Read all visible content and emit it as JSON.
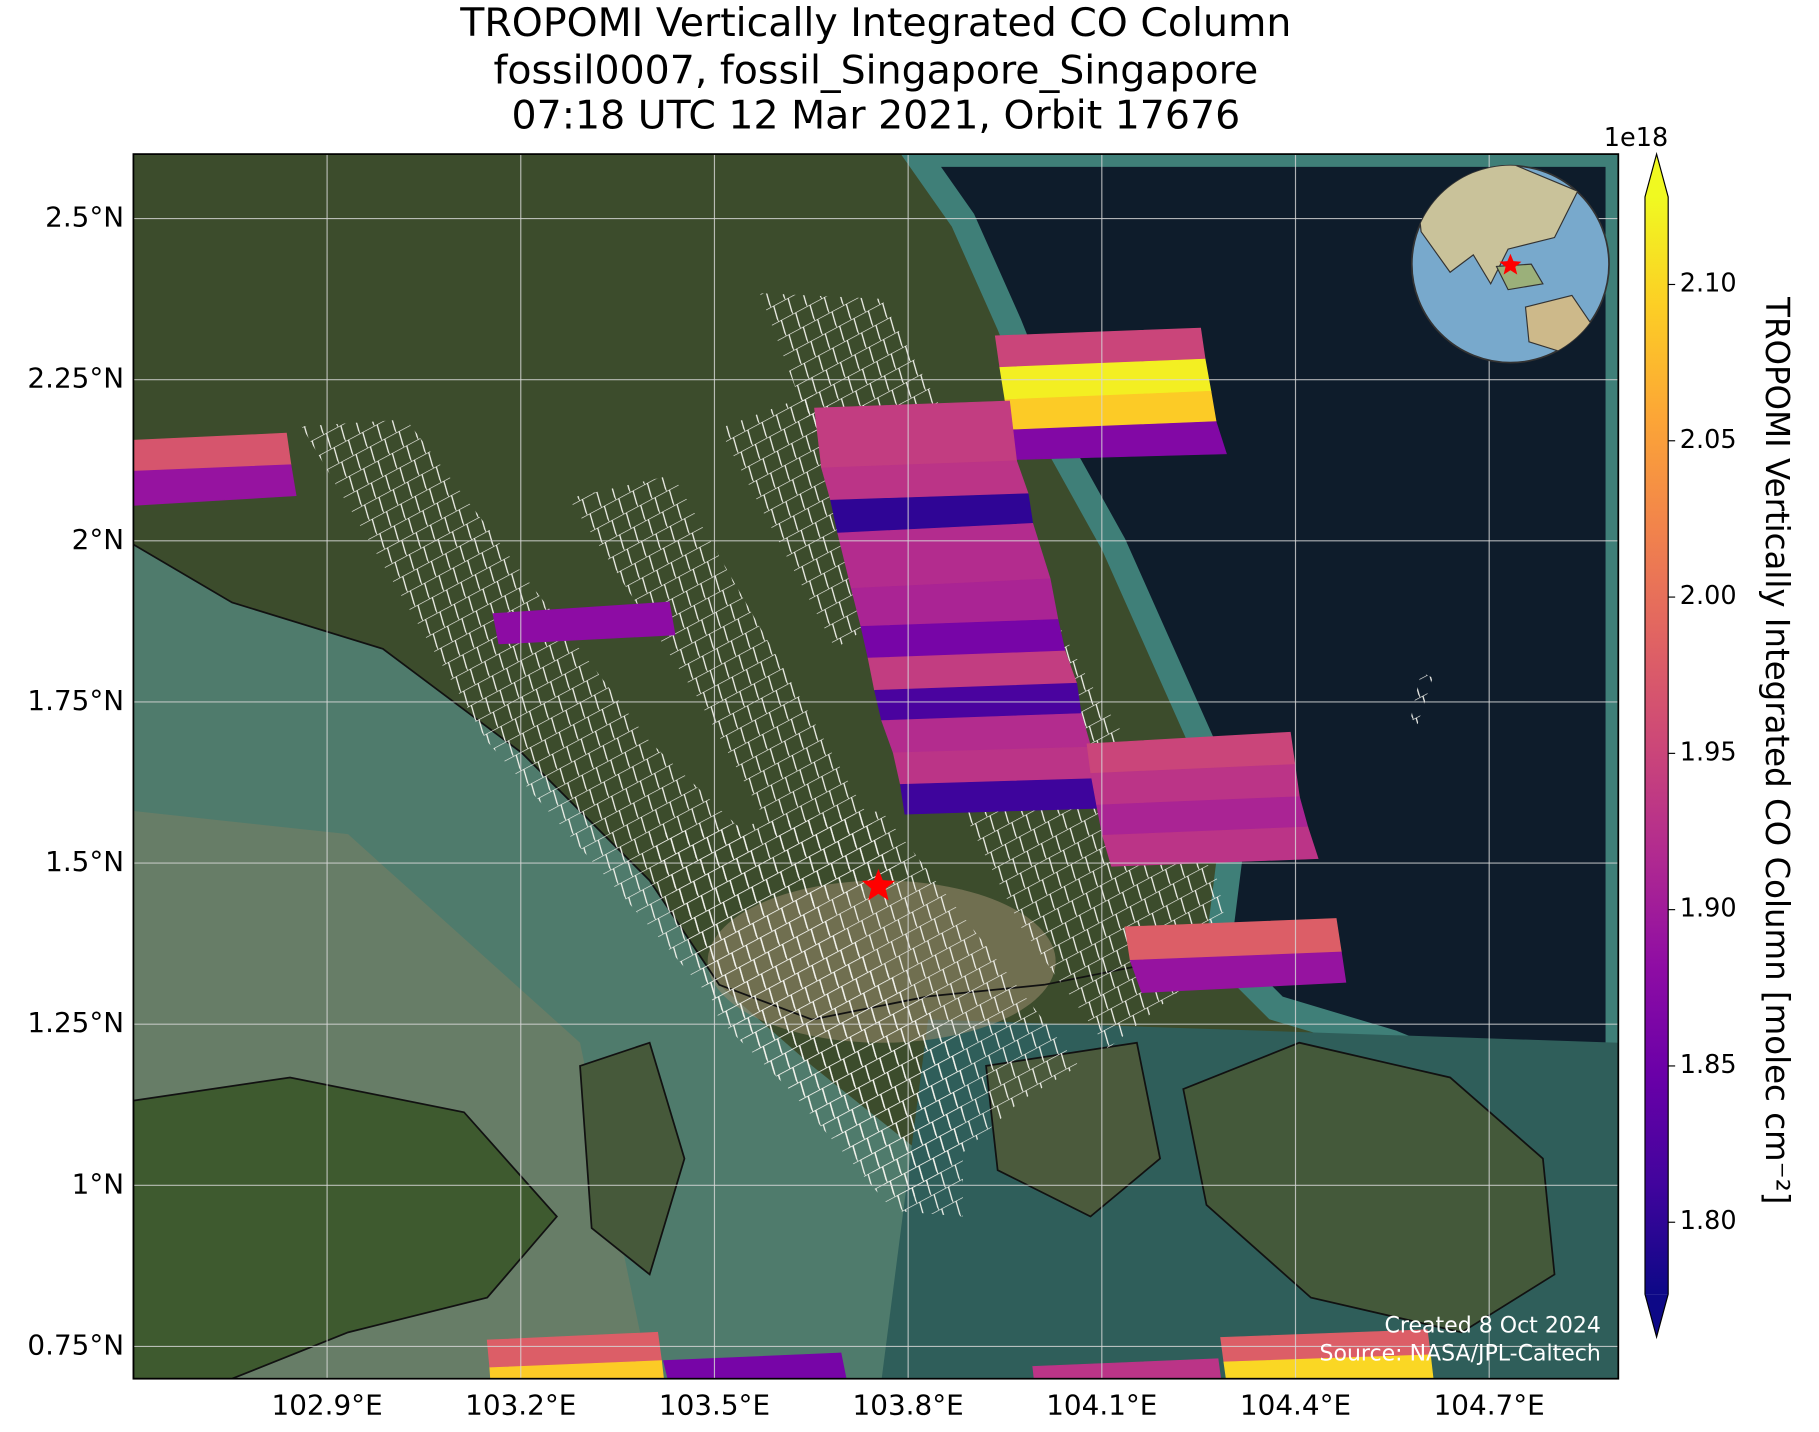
{
  "chart_data": {
    "type": "swath-map",
    "title": [
      "TROPOMI Vertically Integrated CO Column",
      "fossil0007, fossil_Singapore_Singapore",
      "07:18 UTC 12 Mar 2021, Orbit 17676"
    ],
    "xlim": [
      102.6,
      104.9
    ],
    "ylim": [
      0.7,
      2.6
    ],
    "xticks": [
      {
        "value": 102.9,
        "label": "102.9°E"
      },
      {
        "value": 103.2,
        "label": "103.2°E"
      },
      {
        "value": 103.5,
        "label": "103.5°E"
      },
      {
        "value": 103.8,
        "label": "103.8°E"
      },
      {
        "value": 104.1,
        "label": "104.1°E"
      },
      {
        "value": 104.4,
        "label": "104.4°E"
      },
      {
        "value": 104.7,
        "label": "104.7°E"
      }
    ],
    "yticks": [
      {
        "value": 0.75,
        "label": "0.75°N"
      },
      {
        "value": 1.0,
        "label": "1°N"
      },
      {
        "value": 1.25,
        "label": "1.25°N"
      },
      {
        "value": 1.5,
        "label": "1.5°N"
      },
      {
        "value": 1.75,
        "label": "1.75°N"
      },
      {
        "value": 2.0,
        "label": "2°N"
      },
      {
        "value": 2.25,
        "label": "2.25°N"
      },
      {
        "value": 2.5,
        "label": "2.5°N"
      }
    ],
    "grid": true,
    "colormap": "plasma",
    "clim": [
      1.777,
      2.128
    ],
    "colorbar_label": "TROPOMI Vertically Integrated CO Column [molec cm⁻²]",
    "colorbar_offset": "1e18",
    "colorbar_ticks": [
      {
        "value": 1.8,
        "label": "1.80"
      },
      {
        "value": 1.85,
        "label": "1.85"
      },
      {
        "value": 1.9,
        "label": "1.90"
      },
      {
        "value": 1.95,
        "label": "1.95"
      },
      {
        "value": 2.0,
        "label": "2.00"
      },
      {
        "value": 2.05,
        "label": "2.05"
      },
      {
        "value": 2.1,
        "label": "2.10"
      }
    ],
    "target": {
      "lon": 103.754,
      "lat": 1.464,
      "color": "#ff0000"
    },
    "swaths": [
      {
        "edges": [
          [
            [
              102.6,
              2.156
            ],
            [
              102.837,
              2.167
            ]
          ],
          [
            [
              102.6,
              2.108
            ],
            [
              102.844,
              2.118
            ]
          ],
          [
            [
              102.6,
              2.055
            ],
            [
              102.852,
              2.07
            ]
          ]
        ],
        "values": [
          1.97,
          1.89
        ]
      },
      {
        "edges": [
          [
            [
              103.935,
              2.318
            ],
            [
              104.253,
              2.33
            ]
          ],
          [
            [
              103.942,
              2.269
            ],
            [
              104.26,
              2.282
            ]
          ],
          [
            [
              103.95,
              2.219
            ],
            [
              104.269,
              2.232
            ]
          ],
          [
            [
              103.957,
              2.172
            ],
            [
              104.277,
              2.185
            ]
          ],
          [
            [
              103.964,
              2.126
            ],
            [
              104.293,
              2.135
            ]
          ]
        ],
        "values": [
          1.95,
          2.12,
          2.09,
          1.87
        ]
      },
      {
        "edges": [
          [
            [
              103.655,
              2.206
            ],
            [
              103.957,
              2.217
            ]
          ],
          [
            [
              103.666,
              2.113
            ],
            [
              103.968,
              2.124
            ]
          ],
          [
            [
              103.68,
              2.063
            ],
            [
              103.986,
              2.073
            ]
          ],
          [
            [
              103.691,
              2.012
            ],
            [
              103.993,
              2.027
            ]
          ],
          [
            [
              103.712,
              1.926
            ],
            [
              104.02,
              1.941
            ]
          ],
          [
            [
              103.727,
              1.867
            ],
            [
              104.032,
              1.878
            ]
          ],
          [
            [
              103.738,
              1.818
            ],
            [
              104.043,
              1.829
            ]
          ],
          [
            [
              103.748,
              1.768
            ],
            [
              104.061,
              1.779
            ]
          ],
          [
            [
              103.759,
              1.721
            ],
            [
              104.068,
              1.732
            ]
          ],
          [
            [
              103.777,
              1.671
            ],
            [
              104.083,
              1.68
            ]
          ],
          [
            [
              103.788,
              1.622
            ],
            [
              104.092,
              1.631
            ]
          ],
          [
            [
              103.795,
              1.576
            ],
            [
              104.093,
              1.585
            ]
          ]
        ],
        "values": [
          1.94,
          1.93,
          1.8,
          1.92,
          1.91,
          1.86,
          1.94,
          1.82,
          1.92,
          1.93,
          1.81
        ]
      },
      {
        "edges": [
          [
            [
              104.077,
              1.685
            ],
            [
              104.392,
              1.703
            ]
          ],
          [
            [
              104.083,
              1.639
            ],
            [
              104.399,
              1.653
            ]
          ],
          [
            [
              104.092,
              1.59
            ],
            [
              104.406,
              1.603
            ]
          ],
          [
            [
              104.101,
              1.543
            ],
            [
              104.419,
              1.556
            ]
          ],
          [
            [
              104.115,
              1.495
            ],
            [
              104.435,
              1.507
            ]
          ]
        ],
        "values": [
          1.95,
          1.93,
          1.91,
          1.93
        ]
      },
      {
        "edges": [
          [
            [
              103.157,
              1.887
            ],
            [
              103.43,
              1.905
            ]
          ],
          [
            [
              103.166,
              1.84
            ],
            [
              103.439,
              1.854
            ]
          ]
        ],
        "values": [
          1.88
        ]
      },
      {
        "edges": [
          [
            [
              104.136,
              1.401
            ],
            [
              104.463,
              1.414
            ]
          ],
          [
            [
              104.144,
              1.349
            ],
            [
              104.471,
              1.362
            ]
          ],
          [
            [
              104.162,
              1.299
            ],
            [
              104.478,
              1.315
            ]
          ]
        ],
        "values": [
          1.98,
          1.89
        ]
      },
      {
        "edges": [
          [
            [
              103.148,
              0.76
            ],
            [
              103.412,
              0.772
            ]
          ],
          [
            [
              103.152,
              0.717
            ],
            [
              103.418,
              0.728
            ]
          ],
          [
            [
              103.155,
              0.674
            ],
            [
              103.423,
              0.684
            ]
          ]
        ],
        "values": [
          1.98,
          2.09
        ]
      },
      {
        "edges": [
          [
            [
              103.421,
              0.728
            ],
            [
              103.696,
              0.74
            ]
          ],
          [
            [
              103.432,
              0.683
            ],
            [
              103.705,
              0.695
            ]
          ]
        ],
        "values": [
          1.86
        ]
      },
      {
        "edges": [
          [
            [
              103.993,
              0.719
            ],
            [
              104.28,
              0.731
            ]
          ],
          [
            [
              103.998,
              0.674
            ],
            [
              104.286,
              0.686
            ]
          ]
        ],
        "values": [
          1.93
        ]
      },
      {
        "edges": [
          [
            [
              104.284,
              0.764
            ],
            [
              104.604,
              0.776
            ]
          ],
          [
            [
              104.289,
              0.726
            ],
            [
              104.609,
              0.737
            ]
          ],
          [
            [
              104.295,
              0.683
            ],
            [
              104.614,
              0.693
            ]
          ]
        ],
        "values": [
          1.98,
          2.1
        ]
      }
    ],
    "credits": [
      "Created 8 Oct 2024",
      "Source: NASA/JPL-Caltech"
    ]
  }
}
